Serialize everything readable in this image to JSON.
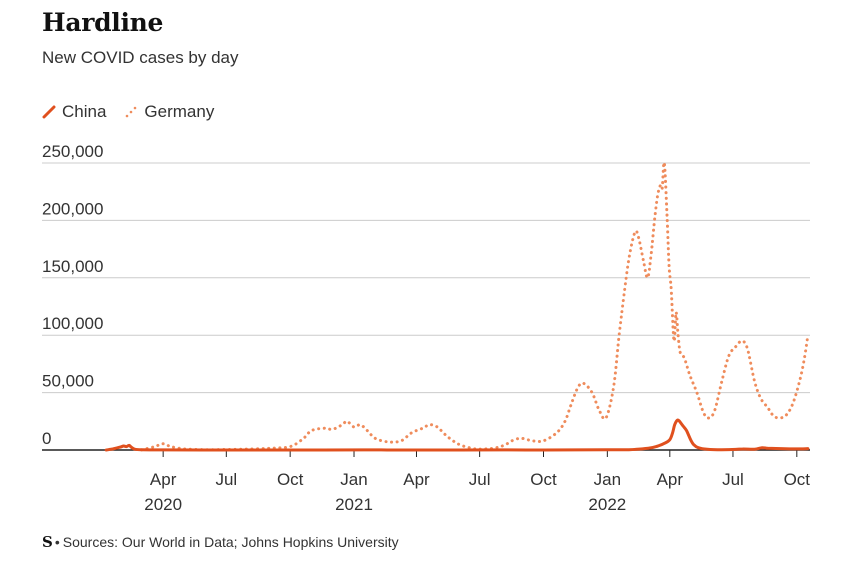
{
  "title": "Hardline",
  "subtitle": "New COVID cases by day",
  "legend": {
    "china_label": "China",
    "germany_label": "Germany"
  },
  "footer": {
    "logo": "S",
    "dot": "•",
    "sources": "Sources: Our World in Data; Johns Hopkins University"
  },
  "colors": {
    "china": "#e0501e",
    "germany": "#ef8c5c",
    "grid": "#cccccc",
    "axis": "#222222"
  },
  "chart_data": {
    "type": "line",
    "title": "Hardline",
    "subtitle": "New COVID cases by day",
    "ylim": [
      0,
      250000
    ],
    "xlim": [
      "2020-01-01",
      "2022-10-20"
    ],
    "y_ticks": [
      {
        "value": 0,
        "label": "0"
      },
      {
        "value": 50000,
        "label": "50,000"
      },
      {
        "value": 100000,
        "label": "100,000"
      },
      {
        "value": 150000,
        "label": "150,000"
      },
      {
        "value": 200000,
        "label": "200,000"
      },
      {
        "value": 250000,
        "label": "250,000"
      }
    ],
    "x_ticks": [
      {
        "date": "2020-04-01",
        "label": "Apr",
        "year": "2020"
      },
      {
        "date": "2020-07-01",
        "label": "Jul",
        "year": ""
      },
      {
        "date": "2020-10-01",
        "label": "Oct",
        "year": ""
      },
      {
        "date": "2021-01-01",
        "label": "Jan",
        "year": "2021"
      },
      {
        "date": "2021-04-01",
        "label": "Apr",
        "year": ""
      },
      {
        "date": "2021-07-01",
        "label": "Jul",
        "year": ""
      },
      {
        "date": "2021-10-01",
        "label": "Oct",
        "year": ""
      },
      {
        "date": "2022-01-01",
        "label": "Jan",
        "year": "2022"
      },
      {
        "date": "2022-04-01",
        "label": "Apr",
        "year": ""
      },
      {
        "date": "2022-07-01",
        "label": "Jul",
        "year": ""
      },
      {
        "date": "2022-10-01",
        "label": "Oct",
        "year": ""
      }
    ],
    "grid": true,
    "legend_position": "top-left",
    "series": [
      {
        "name": "China",
        "style": "solid",
        "points": [
          [
            "2020-01-10",
            0
          ],
          [
            "2020-01-20",
            1000
          ],
          [
            "2020-01-30",
            2500
          ],
          [
            "2020-02-04",
            3500
          ],
          [
            "2020-02-08",
            3000
          ],
          [
            "2020-02-12",
            4000
          ],
          [
            "2020-02-15",
            2500
          ],
          [
            "2020-02-20",
            700
          ],
          [
            "2020-03-01",
            200
          ],
          [
            "2020-04-01",
            80
          ],
          [
            "2020-07-01",
            20
          ],
          [
            "2020-10-01",
            20
          ],
          [
            "2021-01-15",
            130
          ],
          [
            "2021-04-01",
            20
          ],
          [
            "2021-08-05",
            120
          ],
          [
            "2021-10-01",
            40
          ],
          [
            "2022-01-01",
            200
          ],
          [
            "2022-02-01",
            300
          ],
          [
            "2022-03-01",
            1500
          ],
          [
            "2022-03-15",
            3500
          ],
          [
            "2022-03-25",
            6000
          ],
          [
            "2022-04-01",
            9000
          ],
          [
            "2022-04-05",
            15000
          ],
          [
            "2022-04-08",
            22000
          ],
          [
            "2022-04-12",
            26000
          ],
          [
            "2022-04-15",
            25000
          ],
          [
            "2022-04-20",
            21000
          ],
          [
            "2022-04-25",
            17000
          ],
          [
            "2022-05-01",
            9000
          ],
          [
            "2022-05-05",
            5000
          ],
          [
            "2022-05-12",
            2000
          ],
          [
            "2022-05-25",
            600
          ],
          [
            "2022-06-15",
            200
          ],
          [
            "2022-07-05",
            500
          ],
          [
            "2022-07-15",
            900
          ],
          [
            "2022-08-01",
            700
          ],
          [
            "2022-08-12",
            2000
          ],
          [
            "2022-08-20",
            1500
          ],
          [
            "2022-09-01",
            1300
          ],
          [
            "2022-09-20",
            1000
          ],
          [
            "2022-10-10",
            1000
          ],
          [
            "2022-10-17",
            1200
          ]
        ]
      },
      {
        "name": "Germany",
        "style": "dotted",
        "points": [
          [
            "2020-03-01",
            100
          ],
          [
            "2020-03-20",
            3000
          ],
          [
            "2020-04-01",
            5500
          ],
          [
            "2020-04-12",
            3000
          ],
          [
            "2020-05-01",
            1000
          ],
          [
            "2020-06-01",
            300
          ],
          [
            "2020-07-01",
            400
          ],
          [
            "2020-08-01",
            800
          ],
          [
            "2020-09-01",
            1500
          ],
          [
            "2020-10-01",
            3000
          ],
          [
            "2020-10-20",
            10000
          ],
          [
            "2020-11-01",
            17000
          ],
          [
            "2020-11-20",
            19000
          ],
          [
            "2020-12-01",
            18000
          ],
          [
            "2020-12-15",
            22000
          ],
          [
            "2020-12-22",
            25000
          ],
          [
            "2021-01-01",
            20000
          ],
          [
            "2021-01-10",
            22000
          ],
          [
            "2021-01-20",
            17000
          ],
          [
            "2021-02-01",
            10000
          ],
          [
            "2021-02-20",
            7000
          ],
          [
            "2021-03-10",
            8000
          ],
          [
            "2021-03-25",
            15000
          ],
          [
            "2021-04-10",
            19000
          ],
          [
            "2021-04-20",
            22000
          ],
          [
            "2021-05-01",
            20000
          ],
          [
            "2021-05-15",
            12000
          ],
          [
            "2021-06-01",
            5000
          ],
          [
            "2021-06-20",
            1500
          ],
          [
            "2021-07-01",
            800
          ],
          [
            "2021-07-20",
            1500
          ],
          [
            "2021-08-05",
            4000
          ],
          [
            "2021-08-20",
            9000
          ],
          [
            "2021-09-01",
            10000
          ],
          [
            "2021-09-15",
            8000
          ],
          [
            "2021-10-01",
            8000
          ],
          [
            "2021-10-20",
            15000
          ],
          [
            "2021-11-01",
            25000
          ],
          [
            "2021-11-10",
            40000
          ],
          [
            "2021-11-20",
            55000
          ],
          [
            "2021-11-28",
            58000
          ],
          [
            "2021-12-10",
            50000
          ],
          [
            "2021-12-20",
            35000
          ],
          [
            "2021-12-30",
            28000
          ],
          [
            "2022-01-10",
            55000
          ],
          [
            "2022-01-18",
            100000
          ],
          [
            "2022-01-26",
            140000
          ],
          [
            "2022-02-02",
            170000
          ],
          [
            "2022-02-10",
            190000
          ],
          [
            "2022-02-15",
            185000
          ],
          [
            "2022-02-22",
            165000
          ],
          [
            "2022-02-28",
            150000
          ],
          [
            "2022-03-05",
            170000
          ],
          [
            "2022-03-10",
            200000
          ],
          [
            "2022-03-14",
            220000
          ],
          [
            "2022-03-18",
            230000
          ],
          [
            "2022-03-21",
            228000
          ],
          [
            "2022-03-24",
            250000
          ],
          [
            "2022-03-28",
            205000
          ],
          [
            "2022-03-31",
            160000
          ],
          [
            "2022-04-03",
            140000
          ],
          [
            "2022-04-07",
            95000
          ],
          [
            "2022-04-10",
            120000
          ],
          [
            "2022-04-13",
            100000
          ],
          [
            "2022-04-16",
            85000
          ],
          [
            "2022-04-22",
            80000
          ],
          [
            "2022-04-30",
            65000
          ],
          [
            "2022-05-10",
            50000
          ],
          [
            "2022-05-20",
            32000
          ],
          [
            "2022-05-28",
            28000
          ],
          [
            "2022-06-05",
            35000
          ],
          [
            "2022-06-15",
            60000
          ],
          [
            "2022-06-25",
            82000
          ],
          [
            "2022-07-05",
            90000
          ],
          [
            "2022-07-14",
            95000
          ],
          [
            "2022-07-22",
            88000
          ],
          [
            "2022-08-01",
            60000
          ],
          [
            "2022-08-10",
            45000
          ],
          [
            "2022-08-20",
            37000
          ],
          [
            "2022-08-28",
            30000
          ],
          [
            "2022-09-05",
            28000
          ],
          [
            "2022-09-15",
            30000
          ],
          [
            "2022-09-25",
            40000
          ],
          [
            "2022-10-05",
            60000
          ],
          [
            "2022-10-12",
            80000
          ],
          [
            "2022-10-17",
            100000
          ]
        ]
      }
    ]
  }
}
